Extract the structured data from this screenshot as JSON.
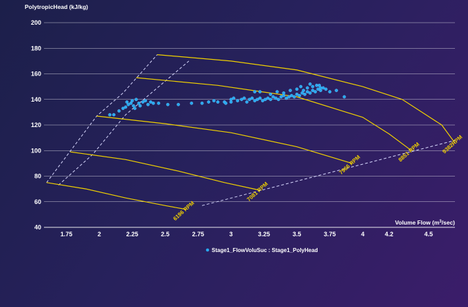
{
  "colors": {
    "grid": "#ffffff",
    "surge": "#d9d9ff",
    "speed_curve": "#f0d000",
    "points": "#28a8f0"
  },
  "chart_data": {
    "type": "scatter",
    "ylabel": "PolytropicHead (kJ/kg)",
    "xlabel_prefix": "Volume Flow (m",
    "xlabel_sup": "3",
    "xlabel_suffix": "/sec)",
    "xlim": [
      1.58,
      4.7
    ],
    "ylim": [
      40,
      200
    ],
    "x_ticks": [
      1.75,
      2,
      2.25,
      2.5,
      2.75,
      3,
      3.25,
      3.5,
      3.75,
      4,
      4.2,
      4.5
    ],
    "x_tick_labels": [
      "1.75",
      "2",
      "2.25",
      "2.5",
      "2.75",
      "3",
      "3.25",
      "3.5",
      "3.75",
      "4",
      "4.2",
      "4.5"
    ],
    "y_ticks": [
      40,
      60,
      80,
      100,
      120,
      140,
      160,
      180,
      200
    ],
    "y_tick_labels": [
      "40",
      "60",
      "80",
      "100",
      "120",
      "140",
      "160",
      "180",
      "200"
    ],
    "grid": "horizontal",
    "legend": {
      "position": "bottom",
      "label": "Stage1_FlowVoluSuc : Stage1_PolyHead"
    },
    "speed_lines": [
      {
        "label": "6196 RPM",
        "points": [
          [
            1.6,
            75
          ],
          [
            1.9,
            70
          ],
          [
            2.2,
            63
          ],
          [
            2.5,
            57
          ],
          [
            2.66,
            54
          ]
        ]
      },
      {
        "label": "7081 RPM",
        "points": [
          [
            1.78,
            99
          ],
          [
            2.2,
            93
          ],
          [
            2.6,
            84
          ],
          [
            2.95,
            75
          ],
          [
            3.22,
            69
          ]
        ]
      },
      {
        "label": "7966 RPM",
        "points": [
          [
            1.98,
            127
          ],
          [
            2.5,
            121
          ],
          [
            3.0,
            114
          ],
          [
            3.5,
            103
          ],
          [
            3.92,
            90
          ]
        ]
      },
      {
        "label": "8851 RPM",
        "points": [
          [
            2.28,
            157
          ],
          [
            2.9,
            151
          ],
          [
            3.5,
            142
          ],
          [
            4.0,
            126
          ],
          [
            4.2,
            113
          ],
          [
            4.37,
            100
          ]
        ]
      },
      {
        "label": "9382RPM",
        "points": [
          [
            2.44,
            175
          ],
          [
            3.0,
            170
          ],
          [
            3.5,
            163
          ],
          [
            4.0,
            150
          ],
          [
            4.3,
            140
          ],
          [
            4.6,
            120
          ],
          [
            4.7,
            106
          ]
        ]
      }
    ],
    "surge_lines": [
      [
        [
          1.6,
          75
        ],
        [
          1.98,
          127
        ],
        [
          2.18,
          145
        ],
        [
          2.44,
          175
        ]
      ],
      [
        [
          1.69,
          73
        ],
        [
          1.95,
          97
        ],
        [
          2.2,
          128
        ],
        [
          2.68,
          170
        ]
      ]
    ],
    "operating_line": [
      [
        2.78,
        57
      ],
      [
        4.7,
        108
      ]
    ],
    "series": [
      {
        "name": "Stage1_FlowVoluSuc : Stage1_PolyHead",
        "points": [
          [
            2.08,
            128
          ],
          [
            2.11,
            128
          ],
          [
            2.15,
            131
          ],
          [
            2.18,
            133
          ],
          [
            2.2,
            134
          ],
          [
            2.21,
            138
          ],
          [
            2.22,
            136
          ],
          [
            2.24,
            137
          ],
          [
            2.25,
            139
          ],
          [
            2.26,
            135
          ],
          [
            2.27,
            133
          ],
          [
            2.28,
            140
          ],
          [
            2.3,
            137
          ],
          [
            2.31,
            135
          ],
          [
            2.33,
            138
          ],
          [
            2.35,
            139
          ],
          [
            2.37,
            136
          ],
          [
            2.39,
            138
          ],
          [
            2.41,
            137
          ],
          [
            2.45,
            137
          ],
          [
            2.52,
            136
          ],
          [
            2.6,
            136
          ],
          [
            2.7,
            137
          ],
          [
            2.78,
            137
          ],
          [
            2.83,
            138
          ],
          [
            2.87,
            139
          ],
          [
            2.9,
            138
          ],
          [
            2.95,
            138
          ],
          [
            3.0,
            138
          ],
          [
            3.05,
            139
          ],
          [
            3.08,
            140
          ],
          [
            3.1,
            141
          ],
          [
            3.12,
            138
          ],
          [
            3.14,
            140
          ],
          [
            3.16,
            141
          ],
          [
            3.18,
            139
          ],
          [
            3.2,
            140
          ],
          [
            3.22,
            141
          ],
          [
            3.24,
            139
          ],
          [
            3.26,
            140
          ],
          [
            3.28,
            141
          ],
          [
            3.3,
            140
          ],
          [
            3.32,
            142
          ],
          [
            3.34,
            141
          ],
          [
            3.36,
            140
          ],
          [
            3.38,
            142
          ],
          [
            3.4,
            143
          ],
          [
            3.42,
            141
          ],
          [
            3.44,
            142
          ],
          [
            3.46,
            143
          ],
          [
            3.48,
            142
          ],
          [
            3.5,
            144
          ],
          [
            3.52,
            143
          ],
          [
            3.54,
            145
          ],
          [
            3.56,
            144
          ],
          [
            3.58,
            146
          ],
          [
            3.6,
            145
          ],
          [
            3.62,
            147
          ],
          [
            3.64,
            146
          ],
          [
            3.66,
            148
          ],
          [
            3.68,
            147
          ],
          [
            3.7,
            149
          ],
          [
            3.3,
            144
          ],
          [
            3.35,
            146
          ],
          [
            3.4,
            145
          ],
          [
            3.45,
            147
          ],
          [
            3.5,
            148
          ],
          [
            3.55,
            147
          ],
          [
            3.58,
            149
          ],
          [
            3.62,
            150
          ],
          [
            3.65,
            151
          ],
          [
            3.68,
            149
          ],
          [
            3.72,
            148
          ],
          [
            3.53,
            150
          ],
          [
            3.6,
            152
          ],
          [
            3.67,
            151
          ],
          [
            3.75,
            146
          ],
          [
            3.8,
            147
          ],
          [
            3.18,
            146
          ],
          [
            3.22,
            146
          ],
          [
            3.86,
            142
          ],
          [
            3.0,
            140
          ],
          [
            3.02,
            141
          ],
          [
            2.96,
            137
          ]
        ]
      }
    ]
  }
}
